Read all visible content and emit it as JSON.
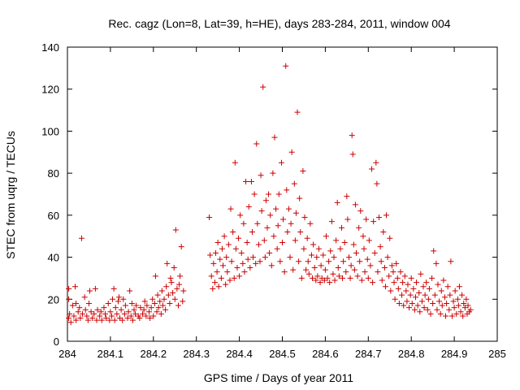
{
  "chart_data": {
    "type": "scatter",
    "title": "Rec. cagz (Lon=8, Lat=39, h=HE), days 283-284, 2011, window 004",
    "xlabel": "GPS time / Days of year 2011",
    "ylabel": "STEC from uqrg / TECUs",
    "xlim": [
      284,
      285
    ],
    "ylim": [
      0,
      140
    ],
    "xticks": [
      "284",
      "284.1",
      "284.2",
      "284.3",
      "284.4",
      "284.5",
      "284.6",
      "284.7",
      "284.8",
      "284.9",
      "285"
    ],
    "yticks": [
      "0",
      "20",
      "40",
      "60",
      "80",
      "100",
      "120",
      "140"
    ],
    "grid": false,
    "legend": "none",
    "marker": "+",
    "color": "#cc0000",
    "points": [
      [
        284.003,
        25
      ],
      [
        284.003,
        20
      ],
      [
        284.003,
        11
      ],
      [
        284.005,
        13
      ],
      [
        284.008,
        9
      ],
      [
        284.012,
        17
      ],
      [
        284.015,
        12
      ],
      [
        284.018,
        26
      ],
      [
        284.02,
        18
      ],
      [
        284.02,
        10
      ],
      [
        284.025,
        14
      ],
      [
        284.028,
        16
      ],
      [
        284.03,
        11
      ],
      [
        284.033,
        49
      ],
      [
        284.035,
        13
      ],
      [
        284.04,
        21
      ],
      [
        284.042,
        15
      ],
      [
        284.045,
        12
      ],
      [
        284.048,
        10
      ],
      [
        284.05,
        18
      ],
      [
        284.052,
        24
      ],
      [
        284.055,
        14
      ],
      [
        284.058,
        11
      ],
      [
        284.062,
        13
      ],
      [
        284.065,
        25
      ],
      [
        284.068,
        10
      ],
      [
        284.07,
        15
      ],
      [
        284.075,
        12
      ],
      [
        284.078,
        14
      ],
      [
        284.08,
        10
      ],
      [
        284.085,
        16
      ],
      [
        284.088,
        13
      ],
      [
        284.09,
        11
      ],
      [
        284.095,
        18
      ],
      [
        284.098,
        10
      ],
      [
        284.1,
        14
      ],
      [
        284.103,
        12
      ],
      [
        284.105,
        20
      ],
      [
        284.108,
        25
      ],
      [
        284.11,
        10
      ],
      [
        284.112,
        16
      ],
      [
        284.115,
        13
      ],
      [
        284.118,
        19
      ],
      [
        284.12,
        21
      ],
      [
        284.122,
        11
      ],
      [
        284.125,
        15
      ],
      [
        284.128,
        10
      ],
      [
        284.13,
        20
      ],
      [
        284.133,
        13
      ],
      [
        284.135,
        17
      ],
      [
        284.14,
        11
      ],
      [
        284.142,
        14
      ],
      [
        284.145,
        24
      ],
      [
        284.148,
        12
      ],
      [
        284.15,
        18
      ],
      [
        284.152,
        10
      ],
      [
        284.155,
        15
      ],
      [
        284.158,
        13
      ],
      [
        284.16,
        17
      ],
      [
        284.165,
        12
      ],
      [
        284.168,
        11
      ],
      [
        284.17,
        16
      ],
      [
        284.175,
        13
      ],
      [
        284.178,
        15
      ],
      [
        284.18,
        19
      ],
      [
        284.183,
        12
      ],
      [
        284.185,
        17
      ],
      [
        284.19,
        14
      ],
      [
        284.192,
        11
      ],
      [
        284.195,
        16
      ],
      [
        284.198,
        20
      ],
      [
        284.2,
        12
      ],
      [
        284.203,
        18
      ],
      [
        284.205,
        31
      ],
      [
        284.208,
        14
      ],
      [
        284.21,
        22
      ],
      [
        284.212,
        16
      ],
      [
        284.215,
        19
      ],
      [
        284.218,
        13
      ],
      [
        284.22,
        24
      ],
      [
        284.222,
        17
      ],
      [
        284.225,
        20
      ],
      [
        284.228,
        15
      ],
      [
        284.23,
        26
      ],
      [
        284.232,
        37
      ],
      [
        284.235,
        22
      ],
      [
        284.238,
        18
      ],
      [
        284.24,
        30
      ],
      [
        284.242,
        28
      ],
      [
        284.245,
        23
      ],
      [
        284.248,
        35
      ],
      [
        284.25,
        20
      ],
      [
        284.252,
        53
      ],
      [
        284.255,
        25
      ],
      [
        284.258,
        17
      ],
      [
        284.26,
        27
      ],
      [
        284.262,
        31
      ],
      [
        284.265,
        45
      ],
      [
        284.268,
        19
      ],
      [
        284.27,
        24
      ],
      [
        284.33,
        59
      ],
      [
        284.332,
        41
      ],
      [
        284.335,
        31
      ],
      [
        284.338,
        25
      ],
      [
        284.34,
        37
      ],
      [
        284.343,
        28
      ],
      [
        284.345,
        42
      ],
      [
        284.348,
        33
      ],
      [
        284.35,
        47
      ],
      [
        284.352,
        26
      ],
      [
        284.355,
        39
      ],
      [
        284.358,
        30
      ],
      [
        284.36,
        44
      ],
      [
        284.362,
        36
      ],
      [
        284.365,
        50
      ],
      [
        284.368,
        27
      ],
      [
        284.37,
        40
      ],
      [
        284.372,
        33
      ],
      [
        284.375,
        46
      ],
      [
        284.378,
        29
      ],
      [
        284.38,
        63
      ],
      [
        284.382,
        38
      ],
      [
        284.385,
        52
      ],
      [
        284.388,
        30
      ],
      [
        284.39,
        85
      ],
      [
        284.392,
        44
      ],
      [
        284.395,
        35
      ],
      [
        284.398,
        49
      ],
      [
        284.4,
        31
      ],
      [
        284.402,
        60
      ],
      [
        284.405,
        42
      ],
      [
        284.408,
        37
      ],
      [
        284.41,
        56
      ],
      [
        284.412,
        33
      ],
      [
        284.415,
        76
      ],
      [
        284.418,
        47
      ],
      [
        284.42,
        39
      ],
      [
        284.422,
        64
      ],
      [
        284.425,
        35
      ],
      [
        284.428,
        76
      ],
      [
        284.43,
        52
      ],
      [
        284.432,
        40
      ],
      [
        284.435,
        70
      ],
      [
        284.438,
        37
      ],
      [
        284.44,
        94
      ],
      [
        284.442,
        56
      ],
      [
        284.445,
        46
      ],
      [
        284.448,
        38
      ],
      [
        284.45,
        79
      ],
      [
        284.452,
        62
      ],
      [
        284.455,
        121
      ],
      [
        284.458,
        48
      ],
      [
        284.46,
        40
      ],
      [
        284.462,
        67
      ],
      [
        284.465,
        54
      ],
      [
        284.468,
        70
      ],
      [
        284.47,
        42
      ],
      [
        284.472,
        60
      ],
      [
        284.475,
        36
      ],
      [
        284.478,
        80
      ],
      [
        284.48,
        50
      ],
      [
        284.482,
        97
      ],
      [
        284.485,
        63
      ],
      [
        284.488,
        44
      ],
      [
        284.49,
        55
      ],
      [
        284.492,
        70
      ],
      [
        284.495,
        38
      ],
      [
        284.498,
        85
      ],
      [
        284.5,
        47
      ],
      [
        284.502,
        58
      ],
      [
        284.505,
        33
      ],
      [
        284.508,
        131
      ],
      [
        284.51,
        72
      ],
      [
        284.512,
        52
      ],
      [
        284.515,
        63
      ],
      [
        284.518,
        40
      ],
      [
        284.52,
        56
      ],
      [
        284.522,
        90
      ],
      [
        284.525,
        34
      ],
      [
        284.528,
        75
      ],
      [
        284.53,
        48
      ],
      [
        284.532,
        61
      ],
      [
        284.535,
        109
      ],
      [
        284.538,
        38
      ],
      [
        284.54,
        68
      ],
      [
        284.542,
        52
      ],
      [
        284.545,
        30
      ],
      [
        284.548,
        81
      ],
      [
        284.55,
        44
      ],
      [
        284.552,
        59
      ],
      [
        284.555,
        34
      ],
      [
        284.558,
        49
      ],
      [
        284.56,
        38
      ],
      [
        284.562,
        32
      ],
      [
        284.565,
        56
      ],
      [
        284.568,
        41
      ],
      [
        284.57,
        30
      ],
      [
        284.572,
        46
      ],
      [
        284.575,
        35
      ],
      [
        284.578,
        29
      ],
      [
        284.58,
        40
      ],
      [
        284.582,
        31
      ],
      [
        284.585,
        44
      ],
      [
        284.588,
        28
      ],
      [
        284.59,
        36
      ],
      [
        284.592,
        30
      ],
      [
        284.595,
        41
      ],
      [
        284.598,
        29
      ],
      [
        284.6,
        34
      ],
      [
        284.602,
        50
      ],
      [
        284.605,
        30
      ],
      [
        284.608,
        38
      ],
      [
        284.61,
        28
      ],
      [
        284.612,
        43
      ],
      [
        284.615,
        57
      ],
      [
        284.618,
        32
      ],
      [
        284.62,
        40
      ],
      [
        284.622,
        29
      ],
      [
        284.625,
        48
      ],
      [
        284.628,
        66
      ],
      [
        284.63,
        35
      ],
      [
        284.632,
        31
      ],
      [
        284.635,
        44
      ],
      [
        284.638,
        54
      ],
      [
        284.64,
        30
      ],
      [
        284.642,
        38
      ],
      [
        284.645,
        47
      ],
      [
        284.648,
        33
      ],
      [
        284.65,
        69
      ],
      [
        284.652,
        58
      ],
      [
        284.655,
        40
      ],
      [
        284.658,
        30
      ],
      [
        284.66,
        36
      ],
      [
        284.662,
        98
      ],
      [
        284.664,
        89
      ],
      [
        284.666,
        46
      ],
      [
        284.668,
        34
      ],
      [
        284.67,
        65
      ],
      [
        284.672,
        42
      ],
      [
        284.675,
        31
      ],
      [
        284.678,
        54
      ],
      [
        284.68,
        38
      ],
      [
        284.682,
        62
      ],
      [
        284.685,
        29
      ],
      [
        284.688,
        50
      ],
      [
        284.69,
        44
      ],
      [
        284.692,
        33
      ],
      [
        284.695,
        58
      ],
      [
        284.698,
        39
      ],
      [
        284.7,
        30
      ],
      [
        284.702,
        48
      ],
      [
        284.705,
        36
      ],
      [
        284.708,
        82
      ],
      [
        284.71,
        28
      ],
      [
        284.712,
        57
      ],
      [
        284.715,
        42
      ],
      [
        284.718,
        85
      ],
      [
        284.72,
        75
      ],
      [
        284.722,
        33
      ],
      [
        284.725,
        59
      ],
      [
        284.728,
        45
      ],
      [
        284.73,
        38
      ],
      [
        284.732,
        29
      ],
      [
        284.735,
        52
      ],
      [
        284.738,
        35
      ],
      [
        284.74,
        26
      ],
      [
        284.742,
        60
      ],
      [
        284.745,
        40
      ],
      [
        284.748,
        31
      ],
      [
        284.75,
        49
      ],
      [
        284.752,
        24
      ],
      [
        284.755,
        36
      ],
      [
        284.758,
        33
      ],
      [
        284.76,
        28
      ],
      [
        284.762,
        20
      ],
      [
        284.765,
        37
      ],
      [
        284.768,
        30
      ],
      [
        284.77,
        25
      ],
      [
        284.772,
        18
      ],
      [
        284.775,
        33
      ],
      [
        284.778,
        22
      ],
      [
        284.78,
        28
      ],
      [
        284.782,
        17
      ],
      [
        284.785,
        31
      ],
      [
        284.788,
        24
      ],
      [
        284.79,
        19
      ],
      [
        284.792,
        27
      ],
      [
        284.795,
        16
      ],
      [
        284.798,
        22
      ],
      [
        284.8,
        30
      ],
      [
        284.802,
        18
      ],
      [
        284.805,
        25
      ],
      [
        284.808,
        15
      ],
      [
        284.81,
        21
      ],
      [
        284.812,
        28
      ],
      [
        284.815,
        17
      ],
      [
        284.818,
        23
      ],
      [
        284.82,
        14
      ],
      [
        284.822,
        32
      ],
      [
        284.825,
        19
      ],
      [
        284.828,
        26
      ],
      [
        284.83,
        16
      ],
      [
        284.832,
        22
      ],
      [
        284.835,
        28
      ],
      [
        284.838,
        15
      ],
      [
        284.84,
        20
      ],
      [
        284.842,
        25
      ],
      [
        284.845,
        13
      ],
      [
        284.848,
        30
      ],
      [
        284.85,
        18
      ],
      [
        284.852,
        43
      ],
      [
        284.855,
        22
      ],
      [
        284.858,
        37
      ],
      [
        284.86,
        15
      ],
      [
        284.862,
        27
      ],
      [
        284.865,
        19
      ],
      [
        284.868,
        13
      ],
      [
        284.87,
        24
      ],
      [
        284.872,
        17
      ],
      [
        284.875,
        29
      ],
      [
        284.878,
        21
      ],
      [
        284.88,
        12
      ],
      [
        284.882,
        18
      ],
      [
        284.885,
        26
      ],
      [
        284.888,
        15
      ],
      [
        284.89,
        22
      ],
      [
        284.892,
        38
      ],
      [
        284.895,
        12
      ],
      [
        284.898,
        19
      ],
      [
        284.9,
        16
      ],
      [
        284.902,
        24
      ],
      [
        284.905,
        13
      ],
      [
        284.908,
        20
      ],
      [
        284.91,
        17
      ],
      [
        284.912,
        26
      ],
      [
        284.915,
        14
      ],
      [
        284.918,
        22
      ],
      [
        284.92,
        12
      ],
      [
        284.922,
        18
      ],
      [
        284.925,
        16
      ],
      [
        284.928,
        20
      ],
      [
        284.93,
        13
      ],
      [
        284.932,
        17
      ],
      [
        284.935,
        14
      ],
      [
        284.938,
        15
      ]
    ]
  }
}
